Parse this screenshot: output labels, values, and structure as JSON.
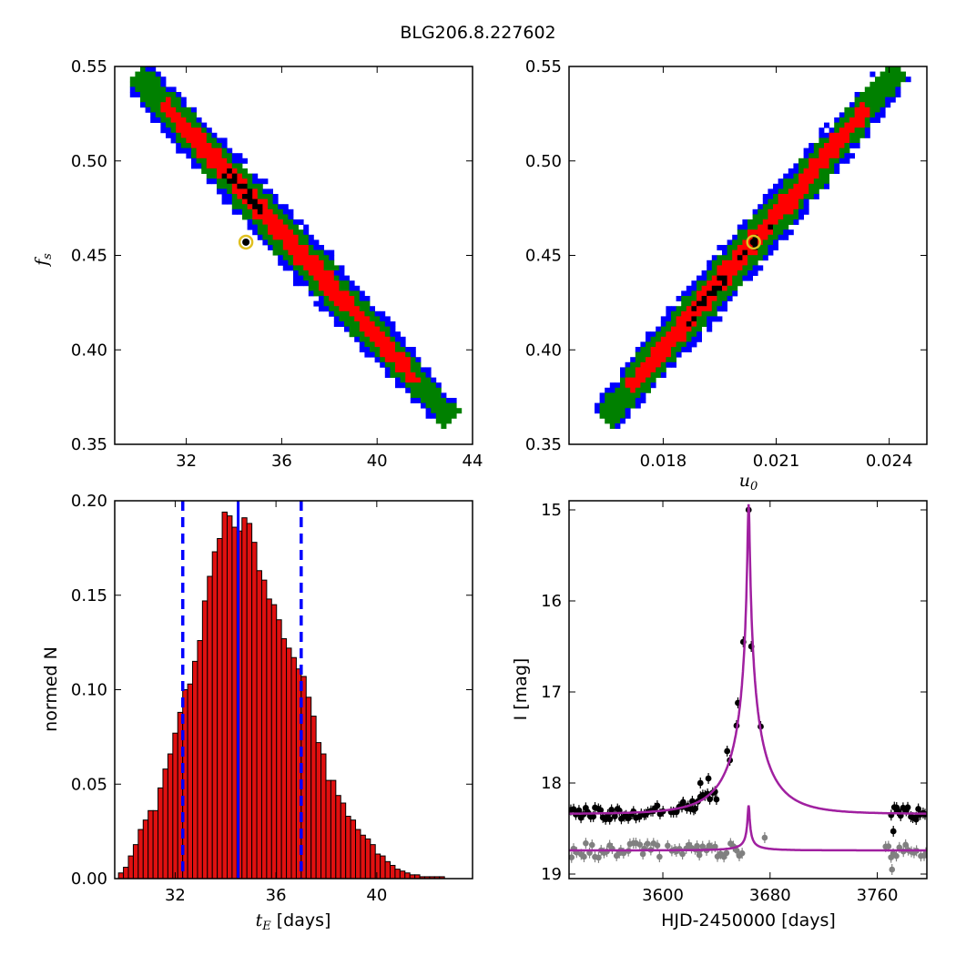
{
  "figure": {
    "title": "BLG206.8.227602"
  },
  "colors": {
    "sigma1": "#ff0000",
    "sigma2": "#008000",
    "sigma3": "#0000ff",
    "best": "#000000",
    "marker": "#e0c020",
    "bar": "#e01010",
    "line": "#0000ff",
    "model": "#a020a0",
    "data_i": "#000000",
    "data_v": "#808080"
  },
  "chart_data": [
    {
      "type": "heatmap",
      "panel": "top-left",
      "xlabel": "",
      "ylabel": "f",
      "ylabel_sub": "s",
      "xlim": [
        29,
        44
      ],
      "ylim": [
        0.35,
        0.55
      ],
      "xticks": [
        32,
        36,
        40,
        44
      ],
      "yticks": [
        0.35,
        0.4,
        0.45,
        0.5,
        0.55
      ],
      "xtick_labels": [
        "32",
        "36",
        "40",
        "44"
      ],
      "ytick_labels": [
        "0.35",
        "0.40",
        "0.45",
        "0.50",
        "0.55"
      ],
      "band": {
        "x0": 30,
        "y0": 0.545,
        "x1": 43,
        "y1": 0.365
      },
      "best_fit": {
        "x": 34.5,
        "y": 0.457
      }
    },
    {
      "type": "heatmap",
      "panel": "top-right",
      "xlabel": "u",
      "xlabel_sub": "0",
      "ylabel": "",
      "xlim": [
        0.0155,
        0.025
      ],
      "ylim": [
        0.35,
        0.55
      ],
      "xticks": [
        0.018,
        0.021,
        0.024
      ],
      "yticks": [
        0.35,
        0.4,
        0.45,
        0.5,
        0.55
      ],
      "xtick_labels": [
        "0.018",
        "0.021",
        "0.024"
      ],
      "ytick_labels": [
        "0.35",
        "0.40",
        "0.45",
        "0.50",
        "0.55"
      ],
      "band": {
        "x0": 0.0165,
        "y0": 0.365,
        "x1": 0.0242,
        "y1": 0.547
      },
      "best_fit": {
        "x": 0.0204,
        "y": 0.457
      }
    },
    {
      "type": "bar",
      "panel": "bottom-left",
      "xlabel": "t",
      "xlabel_sub": "E",
      "xlabel_unit": "[days]",
      "ylabel": "normed N",
      "xlim": [
        29.6,
        43.8
      ],
      "ylim": [
        0,
        0.2
      ],
      "xticks": [
        32,
        36,
        40
      ],
      "yticks": [
        0,
        0.05,
        0.1,
        0.15,
        0.2
      ],
      "xtick_labels": [
        "32",
        "36",
        "40"
      ],
      "ytick_labels": [
        "0.00",
        "0.05",
        "0.10",
        "0.15",
        "0.20"
      ],
      "bin_start": 29.75,
      "bin_width": 0.196,
      "values": [
        0.003,
        0.006,
        0.012,
        0.018,
        0.026,
        0.031,
        0.036,
        0.036,
        0.048,
        0.058,
        0.066,
        0.077,
        0.088,
        0.1,
        0.103,
        0.115,
        0.126,
        0.147,
        0.16,
        0.173,
        0.18,
        0.194,
        0.192,
        0.186,
        0.184,
        0.191,
        0.188,
        0.178,
        0.163,
        0.158,
        0.148,
        0.145,
        0.137,
        0.127,
        0.122,
        0.117,
        0.111,
        0.107,
        0.096,
        0.086,
        0.072,
        0.066,
        0.052,
        0.052,
        0.044,
        0.04,
        0.033,
        0.031,
        0.026,
        0.023,
        0.021,
        0.018,
        0.013,
        0.012,
        0.009,
        0.007,
        0.005,
        0.004,
        0.003,
        0.002,
        0.002,
        0.001,
        0.001,
        0.001,
        0.001,
        0.001
      ],
      "median": 34.5,
      "bounds": [
        32.3,
        37.0
      ]
    },
    {
      "type": "scatter",
      "panel": "bottom-right",
      "xlabel": "HJD-2450000 [days]",
      "ylabel": "I [mag]",
      "xlim": [
        3530,
        3797
      ],
      "ylim": [
        19.05,
        14.9
      ],
      "xticks": [
        3600,
        3680,
        3760
      ],
      "yticks": [
        15,
        16,
        17,
        18,
        19
      ],
      "xtick_labels": [
        "3600",
        "3680",
        "3760"
      ],
      "ytick_labels": [
        "15",
        "16",
        "17",
        "18",
        "19"
      ],
      "model_I": {
        "t0": 3664,
        "u0": 0.0204,
        "tE": 34.5,
        "base": 18.34,
        "fs": 0.457
      },
      "model_V": {
        "t0": 3664,
        "u0": 0.0204,
        "tE": 34.5,
        "base": 18.74,
        "fs": 0.012
      },
      "peak_points": [
        [
          3615,
          18.22
        ],
        [
          3622,
          18.2
        ],
        [
          3628,
          18.0
        ],
        [
          3634,
          17.95
        ],
        [
          3640,
          18.18
        ],
        [
          3648,
          17.65
        ],
        [
          3650,
          17.75
        ],
        [
          3655,
          17.37
        ],
        [
          3656,
          17.12
        ],
        [
          3660,
          16.45
        ],
        [
          3664,
          15.0
        ],
        [
          3666,
          16.5
        ],
        [
          3673,
          17.38
        ],
        [
          3772,
          18.53
        ],
        [
          3775,
          18.3
        ],
        [
          3789,
          18.4
        ]
      ],
      "grey_extra": [
        [
          3676,
          18.6
        ],
        [
          3627,
          18.75
        ],
        [
          3771,
          18.95
        ]
      ]
    }
  ]
}
